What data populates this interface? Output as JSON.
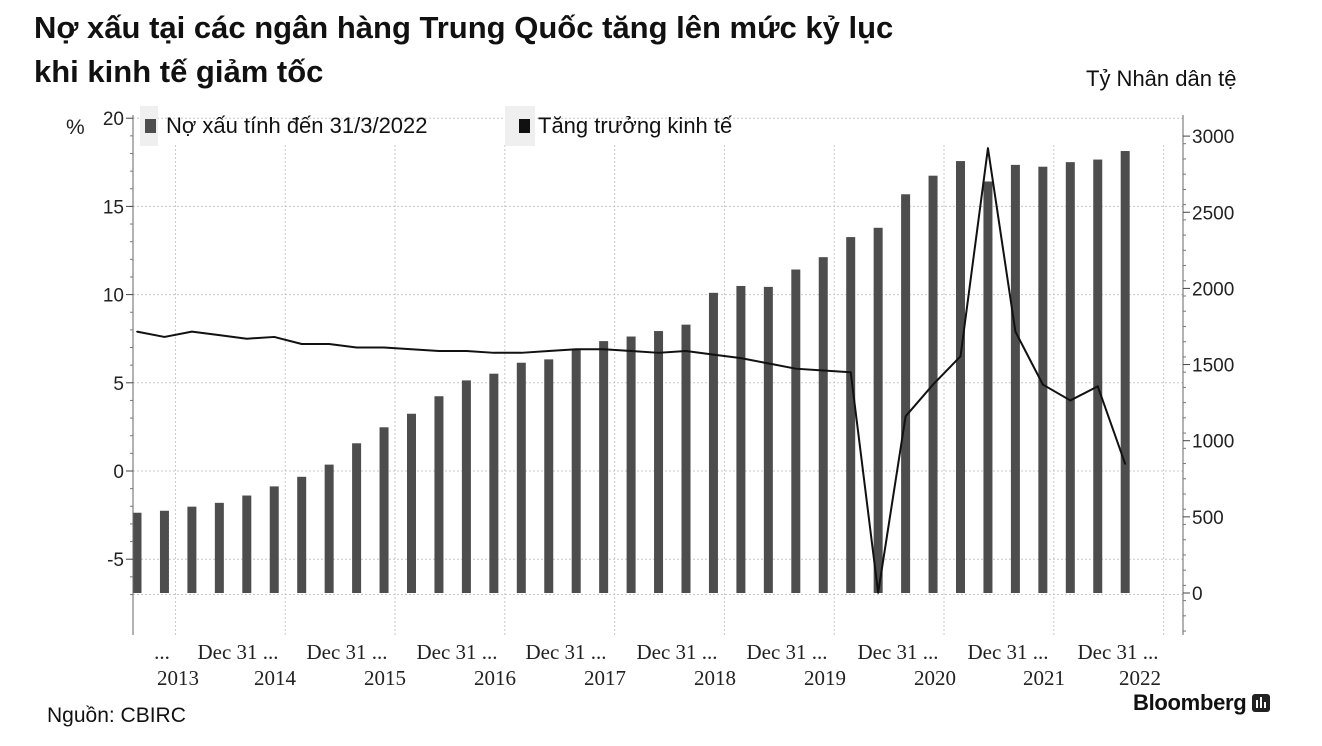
{
  "header": {
    "title_line1": "Nợ xấu tại các ngân hàng Trung Quốc tăng lên mức kỷ lục",
    "title_line2": "khi kinh tế giảm tốc",
    "right_unit": "Tỷ Nhân dân tệ",
    "left_unit": "%"
  },
  "footer": {
    "source": "Nguồn: CBIRC",
    "brand": "Bloomberg"
  },
  "chart_data": {
    "type": "bar",
    "title": "Nợ xấu tại các ngân hàng Trung Quốc tăng lên mức kỷ lục khi kinh tế giảm tốc",
    "legend_placement": "top",
    "grid": true,
    "y_left": {
      "label": "%",
      "ticks": [
        -5,
        0,
        5,
        10,
        15,
        20
      ],
      "range": [
        -7,
        20
      ]
    },
    "y_right": {
      "label": "Tỷ Nhân dân tệ",
      "ticks": [
        0,
        500,
        1000,
        1500,
        2000,
        2500,
        3000
      ],
      "range": [
        0,
        3000
      ]
    },
    "x_tick_labels_row1": [
      "...",
      "Dec 31 ...",
      "Dec 31 ...",
      "Dec 31 ...",
      "Dec 31 ...",
      "Dec 31 ...",
      "Dec 31 ...",
      "Dec 31 ...",
      "Dec 31 ...",
      "Dec 31 ..."
    ],
    "x_tick_labels_row2": [
      "2013",
      "2014",
      "2015",
      "2016",
      "2017",
      "2018",
      "2019",
      "2020",
      "2021",
      "2022"
    ],
    "series": [
      {
        "name": "Nợ xấu tính đến 31/3/2022",
        "type": "bar",
        "axis": "right",
        "color": "#4d4d4d",
        "values": [
          527,
          540,
          567,
          592,
          640,
          700,
          763,
          843,
          983,
          1088,
          1177,
          1292,
          1396,
          1440,
          1512,
          1534,
          1600,
          1654,
          1684,
          1720,
          1762,
          1971,
          2016,
          2010,
          2124,
          2205,
          2337,
          2398,
          2618,
          2740,
          2836,
          2702,
          2811,
          2799,
          2829,
          2846,
          2902
        ]
      },
      {
        "name": "Tăng trưởng kinh tế",
        "type": "line",
        "axis": "left",
        "color": "#111111",
        "values": [
          7.9,
          7.6,
          7.9,
          7.7,
          7.5,
          7.6,
          7.2,
          7.2,
          7.0,
          7.0,
          6.9,
          6.8,
          6.8,
          6.7,
          6.7,
          6.8,
          6.9,
          6.9,
          6.8,
          6.7,
          6.8,
          6.6,
          6.4,
          6.1,
          5.8,
          5.7,
          5.6,
          -6.9,
          3.1,
          4.9,
          6.5,
          18.3,
          7.9,
          4.9,
          4.0,
          4.8,
          0.4
        ]
      }
    ]
  }
}
